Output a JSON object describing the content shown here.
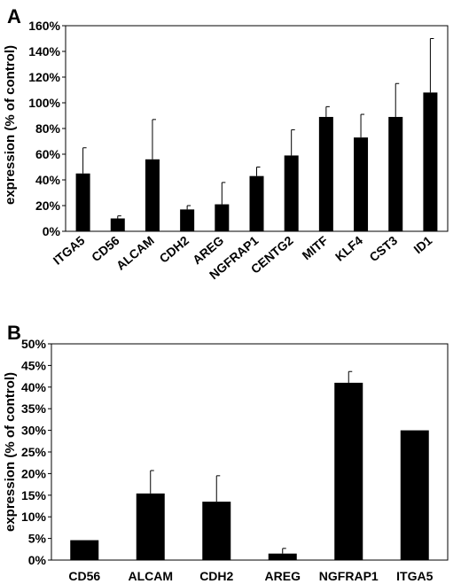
{
  "chart_data": [
    {
      "panel": "A",
      "type": "bar",
      "ylabel": "expression (% of control)",
      "ylim": [
        0,
        160
      ],
      "yticks": [
        "0%",
        "20%",
        "40%",
        "60%",
        "80%",
        "100%",
        "120%",
        "140%",
        "160%"
      ],
      "categories": [
        "ITGA5",
        "CD56",
        "ALCAM",
        "CDH2",
        "AREG",
        "NGFRAP1",
        "CENTG2",
        "MITF",
        "KLF4",
        "CST3",
        "ID1"
      ],
      "values": [
        45,
        10,
        56,
        17,
        21,
        43,
        59,
        89,
        73,
        89,
        108
      ],
      "error_upper": [
        20,
        2,
        31,
        3,
        17,
        7,
        20,
        8,
        18,
        26,
        42
      ],
      "colors": {
        "bar": "#000000"
      }
    },
    {
      "panel": "B",
      "type": "bar",
      "ylabel": "expression (% of control)",
      "ylim": [
        0,
        50
      ],
      "yticks": [
        "0%",
        "5%",
        "10%",
        "15%",
        "20%",
        "25%",
        "30%",
        "35%",
        "40%",
        "45%",
        "50%"
      ],
      "categories": [
        "CD56",
        "ALCAM",
        "CDH2",
        "AREG",
        "NGFRAP1",
        "ITGA5"
      ],
      "values": [
        4.6,
        15.4,
        13.5,
        1.5,
        41,
        30
      ],
      "error_upper": [
        0,
        5.3,
        6,
        1.2,
        2.6,
        0
      ],
      "colors": {
        "bar": "#000000"
      }
    }
  ]
}
